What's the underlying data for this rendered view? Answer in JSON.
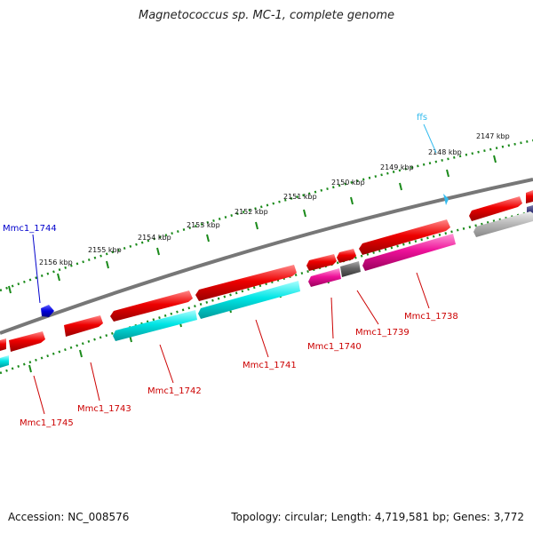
{
  "title": "Magnetococcus sp. MC-1, complete genome",
  "footer": {
    "accession": "Accession: NC_008576",
    "summary": "Topology: circular; Length: 4,719,581 bp; Genes: 3,772"
  },
  "scale": [
    "2147 kbp",
    "2148 kbp",
    "2149 kbp",
    "2150 kbp",
    "2151 kbp",
    "2152 kbp",
    "2153 kbp",
    "2154 kbp",
    "2155 kbp",
    "2156 kbp"
  ],
  "gene_labels": [
    "Mmc1_1744",
    "ffs",
    "Mmc1_1738",
    "Mmc1_1739",
    "Mmc1_1740",
    "Mmc1_1741",
    "Mmc1_1742",
    "Mmc1_1743",
    "Mmc1_1745"
  ],
  "colors": {
    "backbone": "#777777",
    "scale_ticks": "#1a8a1a",
    "gene_red": "#ee0000",
    "gene_cyan": "#00e5e5",
    "gene_magenta": "#ee1199",
    "gene_gray": "#666666",
    "gene_lightgray": "#bbbbbb",
    "gene_blue": "#0000dd",
    "gene_navy": "#333377",
    "label_red": "#cc0000",
    "label_blue": "#0000cc",
    "label_cyan": "#33bbee"
  }
}
